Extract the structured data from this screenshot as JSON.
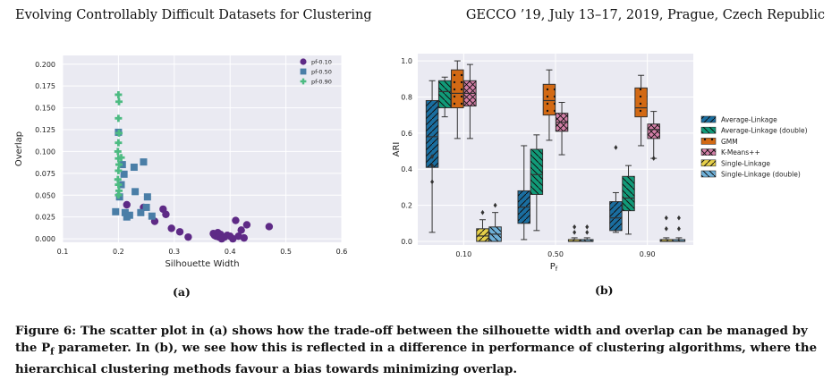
{
  "header": {
    "left": "Evolving Controllably Difficult Datasets for Clustering",
    "right": "GECCO ’19, July 13–17, 2019, Prague, Czech Republic"
  },
  "caption": "Figure 6: The scatter plot in (a) shows how the trade-off between the silhouette width and overlap can be managed by the Pf parameter. In (b), we see how this is reflected in a difference in performance of clustering algorithms, where the hierarchical clustering methods favour a bias towards minimizing overlap.",
  "chart_data": [
    {
      "type": "scatter",
      "sublabel": "(a)",
      "xlabel": "Silhouette Width",
      "ylabel": "Overlap",
      "xlim": [
        0.1,
        0.6
      ],
      "ylim": [
        -0.004,
        0.21
      ],
      "xticks": [
        "0.1",
        "0.2",
        "0.3",
        "0.4",
        "0.5",
        "0.6"
      ],
      "yticks": [
        "0.000",
        "0.025",
        "0.050",
        "0.075",
        "0.100",
        "0.125",
        "0.150",
        "0.175",
        "0.200"
      ],
      "grid": true,
      "legend_position": "top-right",
      "series": [
        {
          "name": "pf-0.10",
          "color": "#5e2a86",
          "marker": "circle",
          "points": [
            [
              0.215,
              0.039
            ],
            [
              0.245,
              0.036
            ],
            [
              0.265,
              0.02
            ],
            [
              0.28,
              0.034
            ],
            [
              0.285,
              0.028
            ],
            [
              0.295,
              0.012
            ],
            [
              0.31,
              0.008
            ],
            [
              0.325,
              0.002
            ],
            [
              0.37,
              0.006
            ],
            [
              0.372,
              0.004
            ],
            [
              0.375,
              0.003
            ],
            [
              0.378,
              0.007
            ],
            [
              0.38,
              0.002
            ],
            [
              0.383,
              0.005
            ],
            [
              0.385,
              0.0
            ],
            [
              0.39,
              0.002
            ],
            [
              0.395,
              0.004
            ],
            [
              0.4,
              0.003
            ],
            [
              0.405,
              0.0
            ],
            [
              0.41,
              0.021
            ],
            [
              0.415,
              0.003
            ],
            [
              0.42,
              0.01
            ],
            [
              0.425,
              0.001
            ],
            [
              0.43,
              0.016
            ],
            [
              0.47,
              0.014
            ]
          ]
        },
        {
          "name": "pf-0.50",
          "color": "#4a7ea7",
          "marker": "square",
          "points": [
            [
              0.195,
              0.031
            ],
            [
              0.2,
              0.122
            ],
            [
              0.202,
              0.048
            ],
            [
              0.205,
              0.062
            ],
            [
              0.207,
              0.085
            ],
            [
              0.21,
              0.074
            ],
            [
              0.212,
              0.03
            ],
            [
              0.215,
              0.025
            ],
            [
              0.22,
              0.027
            ],
            [
              0.228,
              0.082
            ],
            [
              0.23,
              0.054
            ],
            [
              0.24,
              0.03
            ],
            [
              0.245,
              0.088
            ],
            [
              0.25,
              0.036
            ],
            [
              0.252,
              0.048
            ],
            [
              0.26,
              0.026
            ]
          ]
        },
        {
          "name": "pf-0.90",
          "color": "#4dbb82",
          "marker": "plus",
          "points": [
            [
              0.2,
              0.165
            ],
            [
              0.201,
              0.157
            ],
            [
              0.2,
              0.138
            ],
            [
              0.201,
              0.121
            ],
            [
              0.2,
              0.11
            ],
            [
              0.199,
              0.1
            ],
            [
              0.2,
              0.092
            ],
            [
              0.201,
              0.085
            ],
            [
              0.2,
              0.078
            ],
            [
              0.199,
              0.068
            ],
            [
              0.2,
              0.062
            ],
            [
              0.201,
              0.055
            ],
            [
              0.2,
              0.05
            ],
            [
              0.205,
              0.093
            ]
          ]
        }
      ]
    },
    {
      "type": "box",
      "sublabel": "(b)",
      "xlabel": "Pf",
      "ylabel": "ARI",
      "ylim": [
        -0.02,
        1.04
      ],
      "yticks": [
        "0.0",
        "0.2",
        "0.4",
        "0.6",
        "0.8",
        "1.0"
      ],
      "categories": [
        "0.10",
        "0.50",
        "0.90"
      ],
      "grid": true,
      "legend_position": "right",
      "series": [
        {
          "name": "Average-Linkage",
          "color": "#1a6ea0",
          "hatch": "slash",
          "boxes": [
            {
              "whislo": 0.05,
              "q1": 0.41,
              "med": 0.58,
              "q3": 0.78,
              "whishi": 0.89,
              "fliers": [
                0.47,
                0.42,
                0.33
              ]
            },
            {
              "whislo": 0.01,
              "q1": 0.1,
              "med": 0.19,
              "q3": 0.28,
              "whishi": 0.53,
              "fliers": []
            },
            {
              "whislo": 0.05,
              "q1": 0.06,
              "med": 0.13,
              "q3": 0.22,
              "whishi": 0.27,
              "fliers": [
                0.52
              ]
            }
          ]
        },
        {
          "name": "Average-Linkage (double)",
          "color": "#119a78",
          "hatch": "backslash",
          "boxes": [
            {
              "whislo": 0.69,
              "q1": 0.74,
              "med": 0.83,
              "q3": 0.89,
              "whishi": 0.91,
              "fliers": []
            },
            {
              "whislo": 0.06,
              "q1": 0.26,
              "med": 0.37,
              "q3": 0.51,
              "whishi": 0.59,
              "fliers": []
            },
            {
              "whislo": 0.04,
              "q1": 0.17,
              "med": 0.24,
              "q3": 0.36,
              "whishi": 0.42,
              "fliers": []
            }
          ]
        },
        {
          "name": "GMM",
          "color": "#d26914",
          "hatch": "dots",
          "boxes": [
            {
              "whislo": 0.57,
              "q1": 0.74,
              "med": 0.82,
              "q3": 0.95,
              "whishi": 1.0,
              "fliers": []
            },
            {
              "whislo": 0.56,
              "q1": 0.7,
              "med": 0.78,
              "q3": 0.87,
              "whishi": 0.95,
              "fliers": []
            },
            {
              "whislo": 0.53,
              "q1": 0.69,
              "med": 0.74,
              "q3": 0.85,
              "whishi": 0.92,
              "fliers": []
            }
          ]
        },
        {
          "name": "K-Means++",
          "color": "#d27ea6",
          "hatch": "cross",
          "boxes": [
            {
              "whislo": 0.57,
              "q1": 0.75,
              "med": 0.82,
              "q3": 0.89,
              "whishi": 0.98,
              "fliers": []
            },
            {
              "whislo": 0.48,
              "q1": 0.61,
              "med": 0.66,
              "q3": 0.71,
              "whishi": 0.77,
              "fliers": []
            },
            {
              "whislo": 0.46,
              "q1": 0.57,
              "med": 0.62,
              "q3": 0.65,
              "whishi": 0.72,
              "fliers": [
                0.46
              ]
            }
          ]
        },
        {
          "name": "Single-Linkage",
          "color": "#e6d04a",
          "hatch": "slash",
          "boxes": [
            {
              "whislo": 0.0,
              "q1": 0.0,
              "med": 0.03,
              "q3": 0.07,
              "whishi": 0.12,
              "fliers": [
                0.16
              ]
            },
            {
              "whislo": 0.0,
              "q1": 0.0,
              "med": 0.0,
              "q3": 0.01,
              "whishi": 0.02,
              "fliers": [
                0.05,
                0.08
              ]
            },
            {
              "whislo": 0.0,
              "q1": 0.0,
              "med": 0.0,
              "q3": 0.01,
              "whishi": 0.02,
              "fliers": [
                0.07,
                0.13
              ]
            }
          ]
        },
        {
          "name": "Single-Linkage (double)",
          "color": "#6fb1d9",
          "hatch": "backslash",
          "boxes": [
            {
              "whislo": 0.0,
              "q1": 0.0,
              "med": 0.04,
              "q3": 0.08,
              "whishi": 0.16,
              "fliers": [
                0.2
              ]
            },
            {
              "whislo": 0.0,
              "q1": 0.0,
              "med": 0.0,
              "q3": 0.01,
              "whishi": 0.02,
              "fliers": [
                0.05,
                0.08
              ]
            },
            {
              "whislo": 0.0,
              "q1": 0.0,
              "med": 0.0,
              "q3": 0.01,
              "whishi": 0.02,
              "fliers": [
                0.07,
                0.13
              ]
            }
          ]
        }
      ]
    }
  ]
}
